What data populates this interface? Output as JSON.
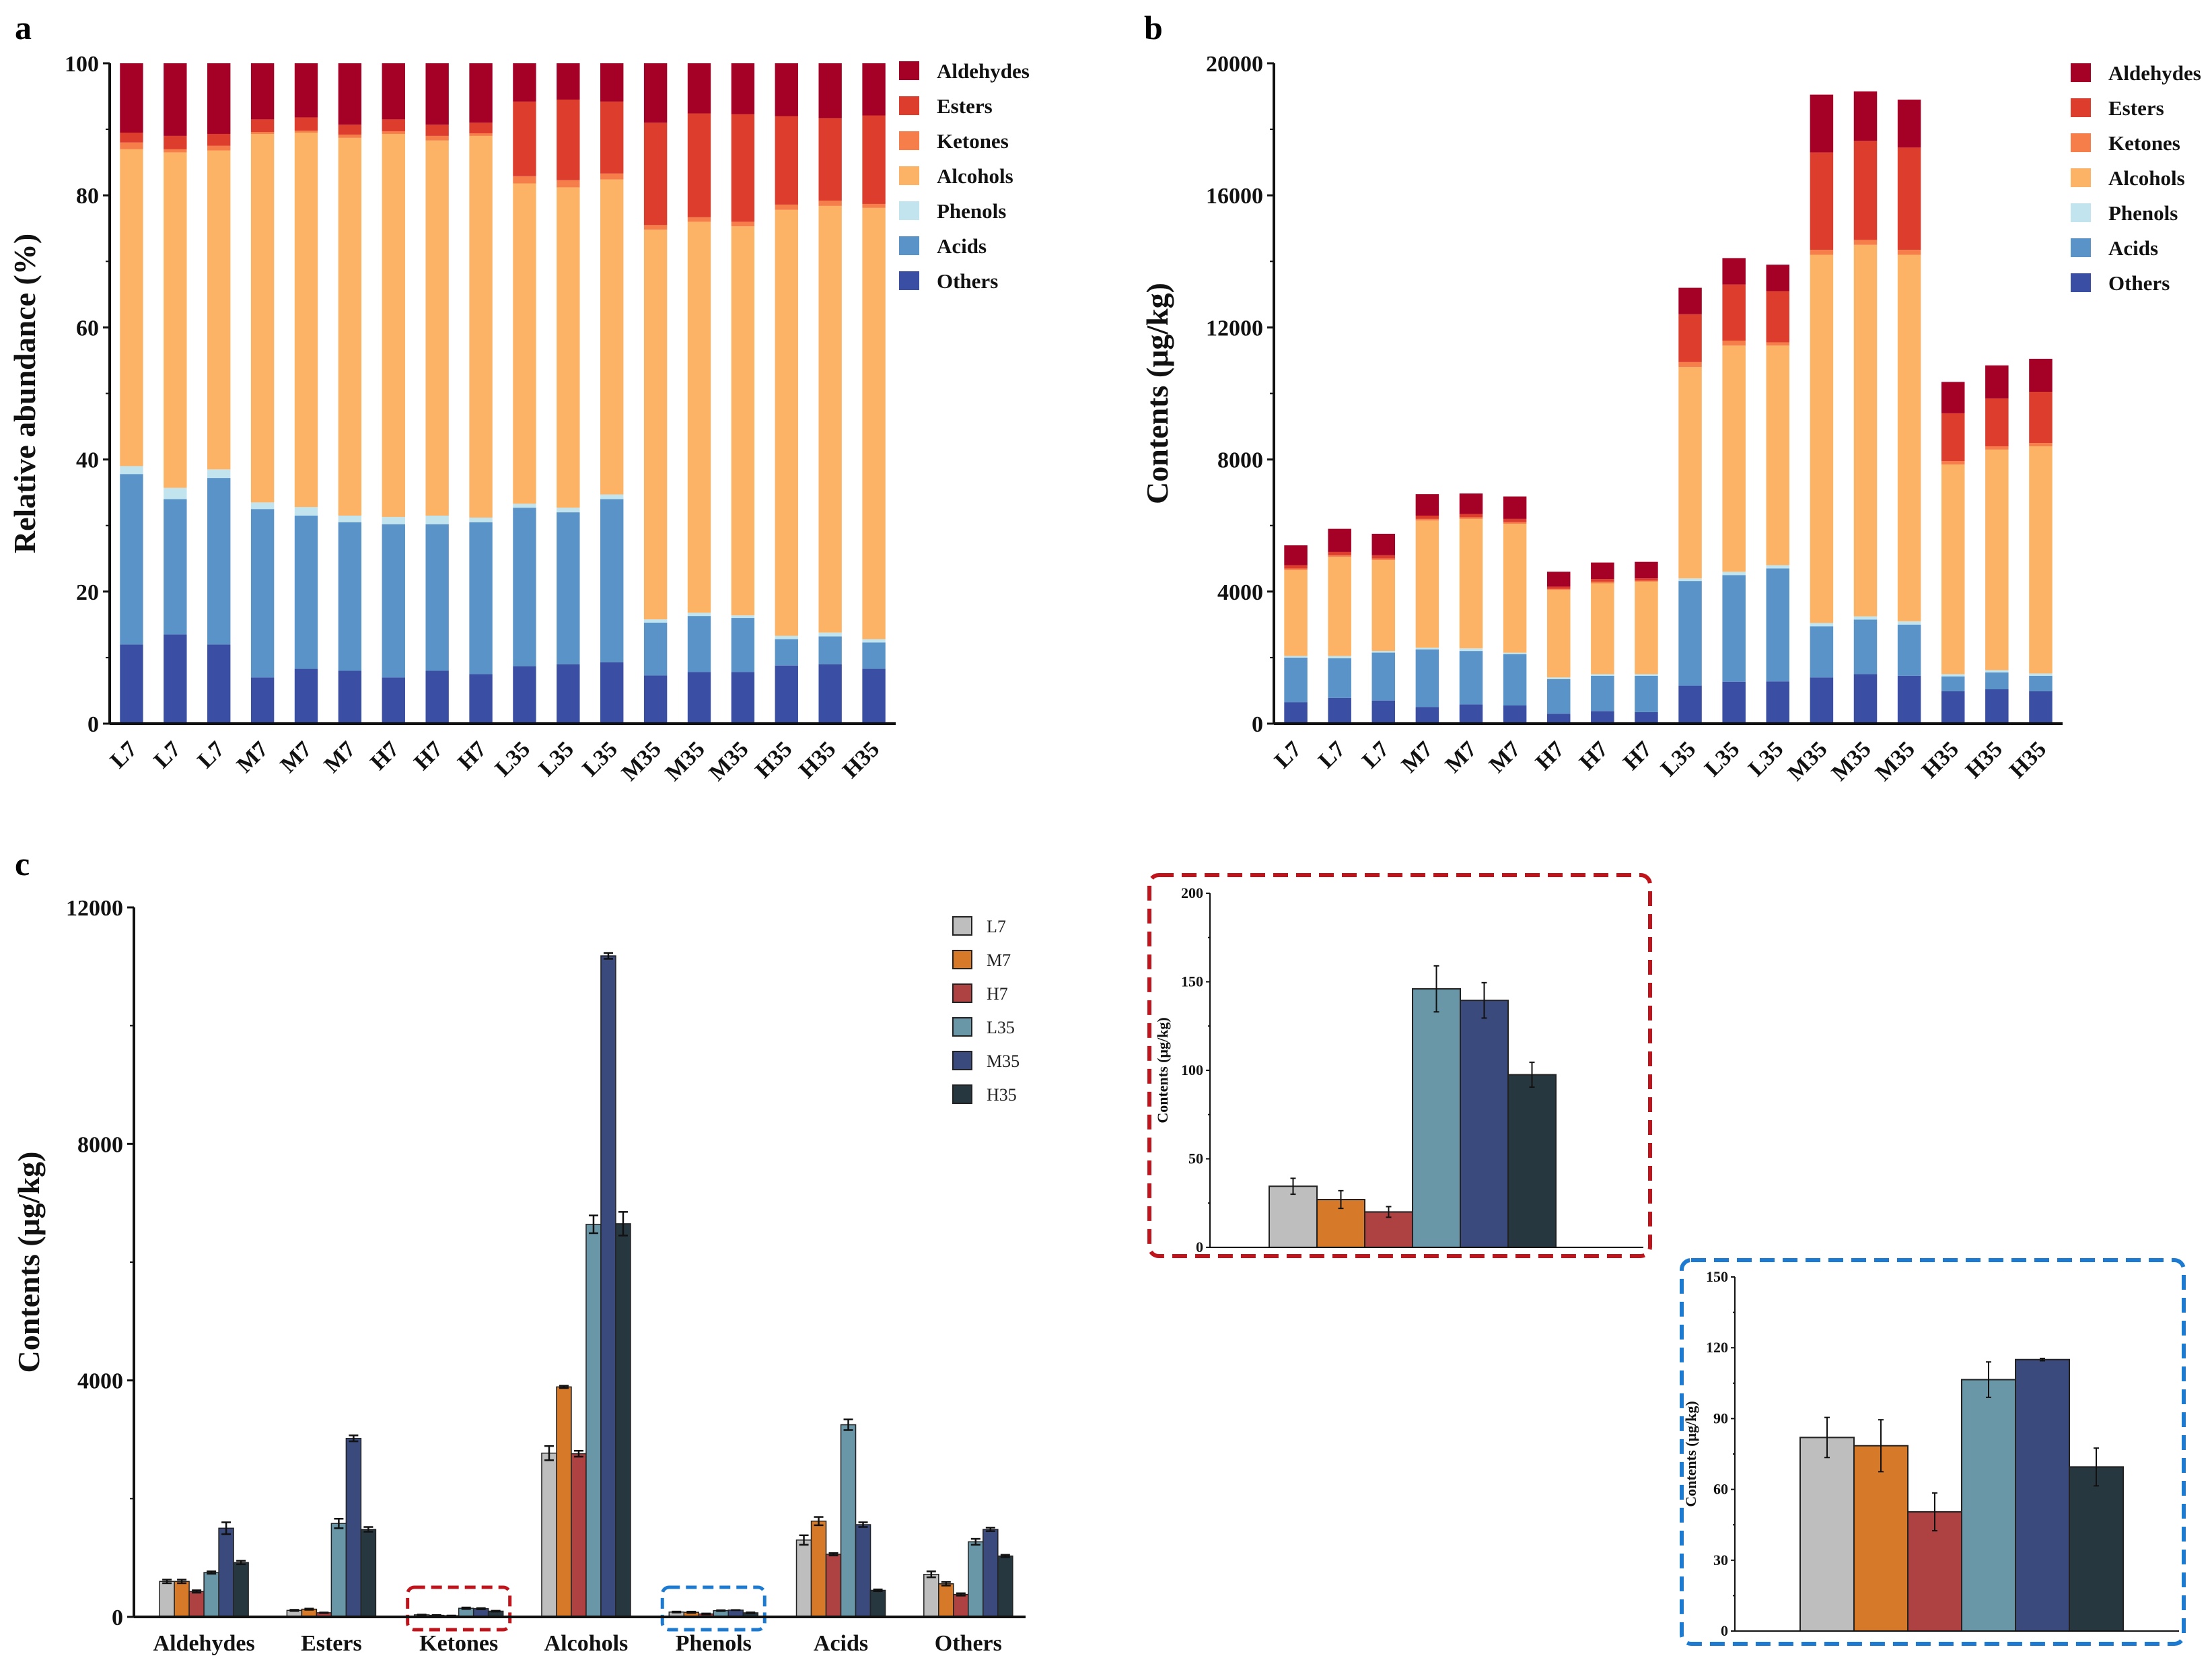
{
  "chart_data": [
    {
      "panel_label": "a",
      "type": "bar",
      "stacked": true,
      "ylabel": "Relative abundance (%)",
      "ylim": [
        0,
        100
      ],
      "yticks": [
        "0",
        "20",
        "40",
        "60",
        "80",
        "100"
      ],
      "categories": [
        "L7",
        "L7",
        "L7",
        "M7",
        "M7",
        "M7",
        "H7",
        "H7",
        "H7",
        "L35",
        "L35",
        "L35",
        "M35",
        "M35",
        "M35",
        "H35",
        "H35",
        "H35"
      ],
      "legend_position": "right",
      "series": [
        {
          "name": "Aldehydes",
          "color": "#A50026",
          "values": [
            10.5,
            11,
            10.7,
            8.5,
            8.2,
            9.3,
            8.5,
            9.3,
            9,
            5.8,
            5.5,
            5.8,
            9,
            7.6,
            7.7,
            8,
            8.3,
            7.9
          ]
        },
        {
          "name": "Esters",
          "color": "#DD3D2D",
          "values": [
            1.5,
            2,
            1.8,
            1.9,
            2,
            1.5,
            1.8,
            1.7,
            1.6,
            11.3,
            12.2,
            10.9,
            15.5,
            15.7,
            16.3,
            13.4,
            12.5,
            13.4
          ]
        },
        {
          "name": "Ketones",
          "color": "#F67E4B",
          "values": [
            1,
            0.5,
            0.7,
            0.3,
            0.3,
            0.5,
            0.4,
            0.7,
            0.4,
            1.1,
            1.1,
            0.9,
            0.7,
            0.7,
            0.7,
            0.8,
            0.8,
            0.6
          ]
        },
        {
          "name": "Alcohols",
          "color": "#FDB366",
          "values": [
            48,
            50.8,
            48.3,
            55.8,
            56.7,
            57.2,
            58,
            56.8,
            57.8,
            48.5,
            48.5,
            47.7,
            59,
            59.2,
            58.9,
            64.5,
            64.6,
            65.3
          ]
        },
        {
          "name": "Phenols",
          "color": "#C2E4EF",
          "values": [
            1.2,
            1.7,
            1.3,
            1,
            1.3,
            1,
            1.1,
            1.3,
            0.7,
            0.6,
            0.7,
            0.7,
            0.5,
            0.5,
            0.4,
            0.5,
            0.6,
            0.5
          ]
        },
        {
          "name": "Acids",
          "color": "#5A93C7",
          "values": [
            25.8,
            20.5,
            25.2,
            25.5,
            23.2,
            22.5,
            23.2,
            22.2,
            23,
            24,
            23,
            24.7,
            8,
            8.5,
            8.2,
            4,
            4.2,
            4
          ]
        },
        {
          "name": "Others",
          "color": "#3A4FA3",
          "values": [
            12,
            13.5,
            12,
            7,
            8.3,
            8,
            7,
            8,
            7.5,
            8.7,
            9,
            9.3,
            7.3,
            7.8,
            7.8,
            8.8,
            9,
            8.3
          ]
        }
      ]
    },
    {
      "panel_label": "b",
      "type": "bar",
      "stacked": true,
      "ylabel": "Contents (μg/kg)",
      "ylim": [
        0,
        20000
      ],
      "yticks": [
        "0",
        "4000",
        "8000",
        "12000",
        "16000",
        "20000"
      ],
      "categories": [
        "L7",
        "L7",
        "L7",
        "M7",
        "M7",
        "M7",
        "H7",
        "H7",
        "H7",
        "L35",
        "L35",
        "L35",
        "M35",
        "M35",
        "M35",
        "H35",
        "H35",
        "H35"
      ],
      "legend_position": "right",
      "series": [
        {
          "name": "Aldehydes",
          "color": "#A50026",
          "values": [
            600,
            700,
            650,
            650,
            620,
            680,
            450,
            500,
            500,
            800,
            800,
            800,
            1750,
            1500,
            1450,
            950,
            1000,
            1000
          ]
        },
        {
          "name": "Esters",
          "color": "#DD3D2D",
          "values": [
            100,
            100,
            100,
            100,
            100,
            100,
            70,
            80,
            70,
            1450,
            1700,
            1550,
            2950,
            3000,
            3100,
            1450,
            1450,
            1550
          ]
        },
        {
          "name": "Ketones",
          "color": "#F67E4B",
          "values": [
            50,
            50,
            50,
            50,
            50,
            50,
            30,
            50,
            30,
            150,
            150,
            100,
            150,
            150,
            150,
            100,
            100,
            100
          ]
        },
        {
          "name": "Alcohols",
          "color": "#FDB366",
          "values": [
            2600,
            3000,
            2750,
            3850,
            3920,
            3900,
            2650,
            2750,
            2800,
            6400,
            6850,
            6650,
            11150,
            11250,
            11100,
            6350,
            6680,
            6880
          ]
        },
        {
          "name": "Phenols",
          "color": "#C2E4EF",
          "values": [
            50,
            70,
            50,
            50,
            80,
            50,
            50,
            50,
            50,
            80,
            100,
            100,
            100,
            100,
            100,
            70,
            70,
            70
          ]
        },
        {
          "name": "Acids",
          "color": "#5A93C7",
          "values": [
            1350,
            1200,
            1450,
            1750,
            1620,
            1550,
            1050,
            1070,
            1100,
            3170,
            3230,
            3420,
            1550,
            1650,
            1550,
            450,
            510,
            470
          ]
        },
        {
          "name": "Others",
          "color": "#3A4FA3",
          "values": [
            650,
            780,
            700,
            500,
            580,
            550,
            300,
            380,
            350,
            1150,
            1270,
            1280,
            1400,
            1500,
            1450,
            980,
            1040,
            980
          ]
        }
      ]
    },
    {
      "panel_label": "c",
      "type": "bar",
      "grouped": true,
      "ylabel": "Contents (μg/kg)",
      "ylim": [
        0,
        12000
      ],
      "yticks": [
        "0",
        "4000",
        "8000",
        "12000"
      ],
      "categories": [
        "Aldehydes",
        "Esters",
        "Ketones",
        "Alcohols",
        "Phenols",
        "Acids",
        "Others"
      ],
      "legend_position": "top-right",
      "highlight_boxes": [
        {
          "category": "Ketones",
          "color": "#C0141C"
        },
        {
          "category": "Phenols",
          "color": "#1C7AD0"
        }
      ],
      "series": [
        {
          "name": "L7",
          "color": "#BEBEBE",
          "values": [
            600,
            110,
            35,
            2770,
            82,
            1300,
            720
          ],
          "errors": [
            30,
            10,
            4,
            120,
            8,
            80,
            50
          ]
        },
        {
          "name": "M7",
          "color": "#D67A2A",
          "values": [
            600,
            130,
            27,
            3890,
            78,
            1620,
            560
          ],
          "errors": [
            30,
            10,
            5,
            20,
            11,
            70,
            30
          ]
        },
        {
          "name": "H7",
          "color": "#AE4142",
          "values": [
            430,
            70,
            20,
            2760,
            50,
            1060,
            380
          ],
          "errors": [
            20,
            5,
            3,
            50,
            8,
            20,
            20
          ]
        },
        {
          "name": "L35",
          "color": "#6A97A8",
          "values": [
            750,
            1580,
            146,
            6640,
            106,
            3250,
            1270
          ],
          "errors": [
            20,
            80,
            13,
            150,
            7,
            90,
            50
          ]
        },
        {
          "name": "M35",
          "color": "#3A4A7C",
          "values": [
            1500,
            3020,
            139,
            11180,
            115,
            1560,
            1480
          ],
          "errors": [
            100,
            50,
            10,
            50,
            1,
            40,
            30
          ]
        },
        {
          "name": "H35",
          "color": "#27373F",
          "values": [
            920,
            1480,
            97,
            6650,
            69,
            450,
            1030
          ],
          "errors": [
            30,
            40,
            7,
            200,
            8,
            15,
            20
          ]
        }
      ]
    },
    {
      "type": "bar",
      "inset_of": "Ketones",
      "box_color": "#C0141C",
      "ylabel": "Contents (μg/kg)",
      "ylim": [
        0,
        200
      ],
      "yticks": [
        "0",
        "50",
        "100",
        "150",
        "200"
      ],
      "series_names": [
        "L7",
        "M7",
        "H7",
        "L35",
        "M35",
        "H35"
      ],
      "colors": [
        "#BEBEBE",
        "#D67A2A",
        "#AE4142",
        "#6A97A8",
        "#3A4A7C",
        "#27373F"
      ],
      "values": [
        34.5,
        27,
        20,
        146,
        139.5,
        97.5
      ],
      "errors": [
        4.5,
        5,
        3,
        13,
        10,
        7
      ]
    },
    {
      "type": "bar",
      "inset_of": "Phenols",
      "box_color": "#1C7AD0",
      "ylabel": "Contents (μg/kg)",
      "ylim": [
        0,
        150
      ],
      "yticks": [
        "0",
        "30",
        "60",
        "90",
        "120",
        "150"
      ],
      "series_names": [
        "L7",
        "M7",
        "H7",
        "L35",
        "M35",
        "H35"
      ],
      "colors": [
        "#BEBEBE",
        "#D67A2A",
        "#AE4142",
        "#6A97A8",
        "#3A4A7C",
        "#27373F"
      ],
      "values": [
        82,
        78.5,
        50.5,
        106.5,
        115,
        69.5
      ],
      "errors": [
        8.5,
        11,
        8,
        7.5,
        0.5,
        8
      ]
    }
  ]
}
